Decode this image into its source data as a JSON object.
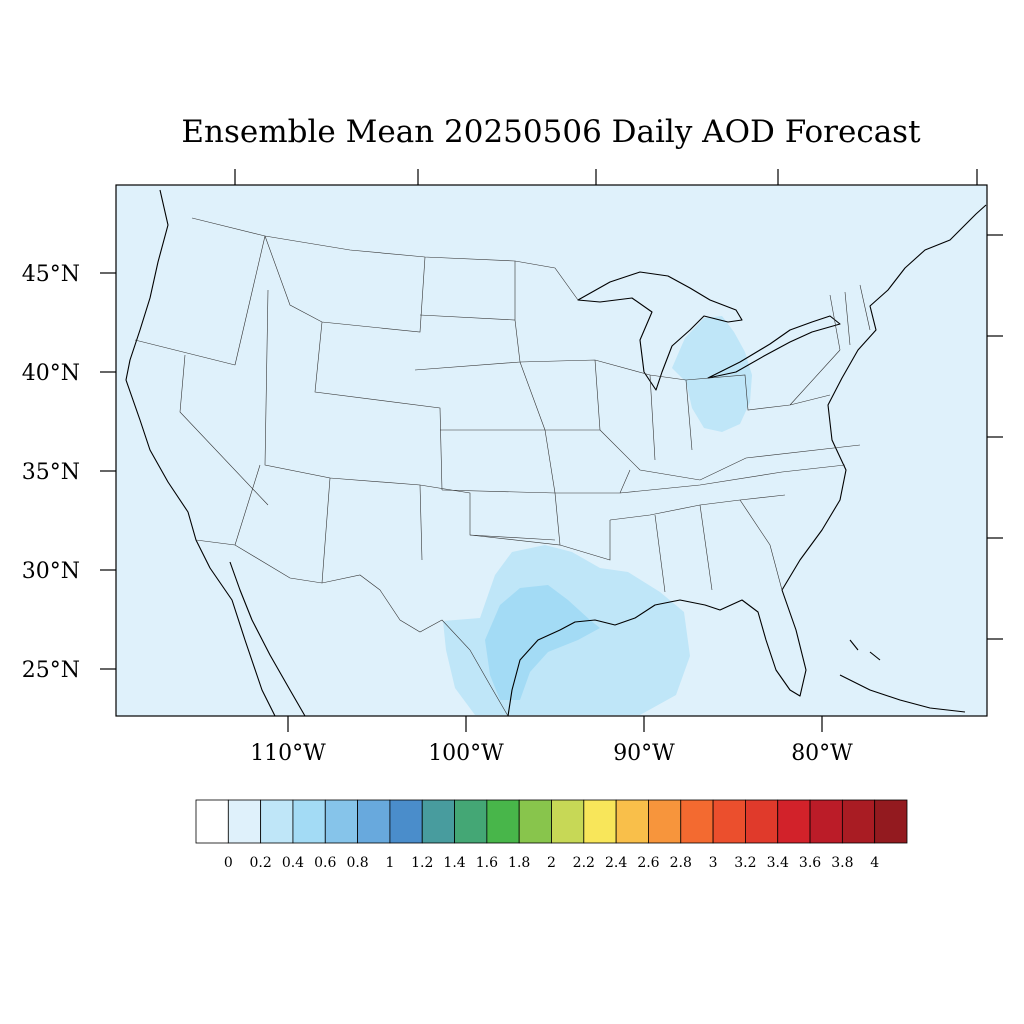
{
  "title": "Ensemble Mean 20250506 Daily AOD Forecast",
  "map": {
    "background_color": "#dff1fb",
    "lat_labels": [
      "45°N",
      "40°N",
      "35°N",
      "30°N",
      "25°N"
    ],
    "lon_labels": [
      "110°W",
      "100°W",
      "90°W",
      "80°W"
    ]
  },
  "aod_regions": [
    {
      "name": "great-lakes-plume",
      "level": "0.2-0.4",
      "color": "#bfe6f8"
    },
    {
      "name": "texas-gulf-plume-outer",
      "level": "0.2-0.4",
      "color": "#bfe6f8"
    },
    {
      "name": "texas-gulf-plume-core",
      "level": "0.4-0.6",
      "color": "#a3dbf5"
    }
  ],
  "colorbar": {
    "labels": [
      "0",
      "0.2",
      "0.4",
      "0.6",
      "0.8",
      "1",
      "1.2",
      "1.4",
      "1.6",
      "1.8",
      "2",
      "2.2",
      "2.4",
      "2.6",
      "2.8",
      "3",
      "3.2",
      "3.4",
      "3.6",
      "3.8",
      "4"
    ],
    "colors": [
      "#ffffff",
      "#dff1fb",
      "#bfe6f8",
      "#a3dbf5",
      "#86c4ea",
      "#68a9dd",
      "#4a8dcb",
      "#489c9e",
      "#44a775",
      "#48b64a",
      "#88c54c",
      "#c7d856",
      "#f8e65a",
      "#f9bf4a",
      "#f7953c",
      "#f36a30",
      "#eb4f2d",
      "#e03a2b",
      "#d2222a",
      "#bb1c28",
      "#a91c23",
      "#931a1f"
    ]
  }
}
